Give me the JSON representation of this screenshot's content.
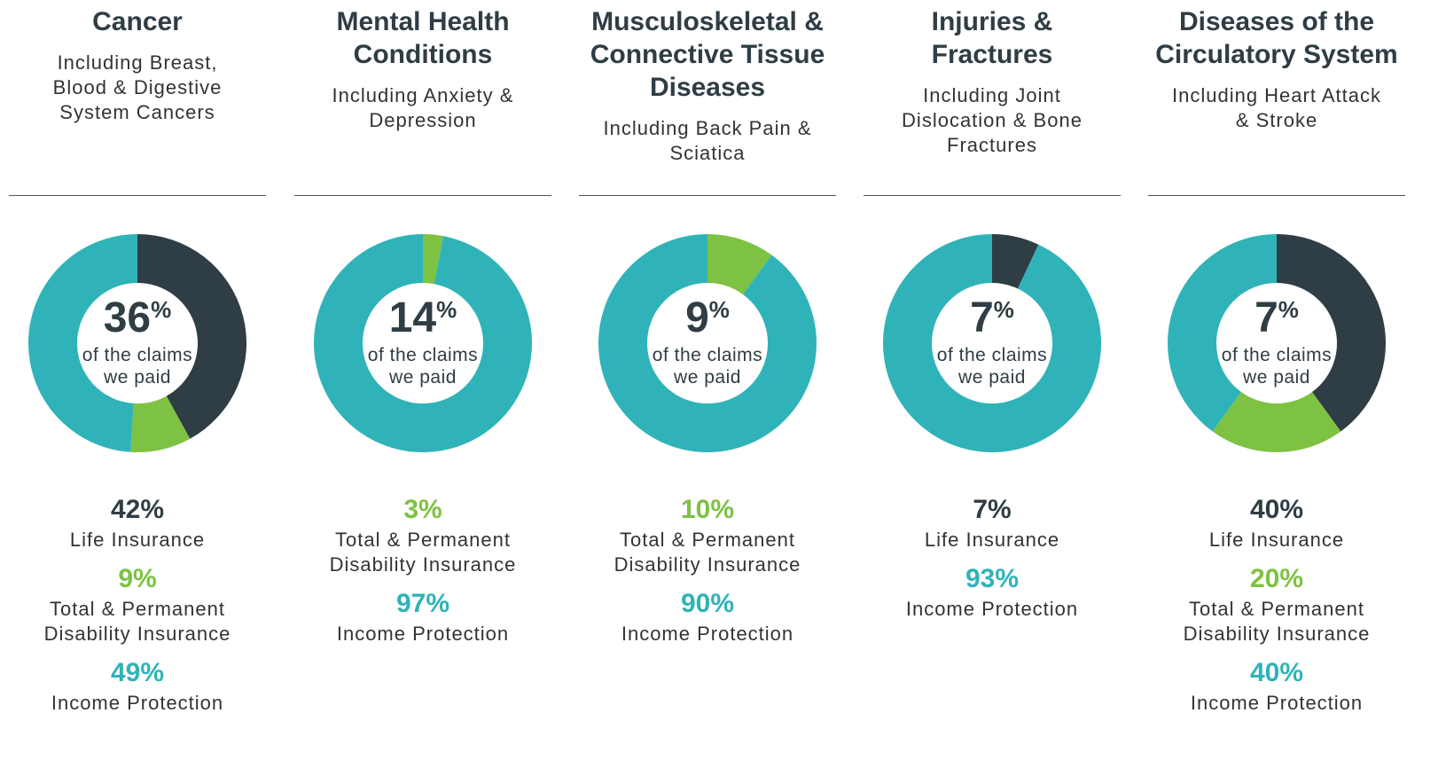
{
  "chart_data": [
    {
      "type": "pie",
      "donut": true,
      "title": "Cancer",
      "subtitle": "Including Breast, Blood & Digestive System Cancers",
      "center_value": 36,
      "center_unit": "%",
      "center_text": [
        "of the claims",
        "we paid"
      ],
      "categories": [
        "Life Insurance",
        "Total & Permanent Disability Insurance",
        "Income Protection"
      ],
      "values": [
        42,
        9,
        49
      ],
      "value_labels": [
        "42%",
        "9%",
        "49%"
      ],
      "colors": [
        "#2f3d45",
        "#7dc242",
        "#2fb3b8"
      ]
    },
    {
      "type": "pie",
      "donut": true,
      "title": "Mental Health Conditions",
      "subtitle": "Including Anxiety & Depression",
      "center_value": 14,
      "center_unit": "%",
      "center_text": [
        "of the claims",
        "we paid"
      ],
      "categories": [
        "Total & Permanent Disability Insurance",
        "Income Protection"
      ],
      "values": [
        3,
        97
      ],
      "value_labels": [
        "3%",
        "97%"
      ],
      "colors": [
        "#7dc242",
        "#2fb3b8"
      ]
    },
    {
      "type": "pie",
      "donut": true,
      "title": "Musculoskeletal & Connective Tissue Diseases",
      "subtitle": "Including Back Pain & Sciatica",
      "center_value": 9,
      "center_unit": "%",
      "center_text": [
        "of the claims",
        "we paid"
      ],
      "categories": [
        "Total & Permanent Disability Insurance",
        "Income Protection"
      ],
      "values": [
        10,
        90
      ],
      "value_labels": [
        "10%",
        "90%"
      ],
      "colors": [
        "#7dc242",
        "#2fb3b8"
      ]
    },
    {
      "type": "pie",
      "donut": true,
      "title": "Injuries & Fractures",
      "subtitle": "Including Joint Dislocation & Bone Fractures",
      "center_value": 7,
      "center_unit": "%",
      "center_text": [
        "of the claims",
        "we paid"
      ],
      "categories": [
        "Life Insurance",
        "Income Protection"
      ],
      "values": [
        7,
        93
      ],
      "value_labels": [
        "7%",
        "93%"
      ],
      "colors": [
        "#2f3d45",
        "#2fb3b8"
      ]
    },
    {
      "type": "pie",
      "donut": true,
      "title": "Diseases of the Circulatory System",
      "subtitle": "Including Heart Attack & Stroke",
      "center_value": 7,
      "center_unit": "%",
      "center_text": [
        "of the claims",
        "we paid"
      ],
      "categories": [
        "Life Insurance",
        "Total & Permanent Disability Insurance",
        "Income Protection"
      ],
      "values": [
        40,
        20,
        40
      ],
      "value_labels": [
        "40%",
        "20%",
        "40%"
      ],
      "colors": [
        "#2f3d45",
        "#7dc242",
        "#2fb3b8"
      ]
    }
  ]
}
